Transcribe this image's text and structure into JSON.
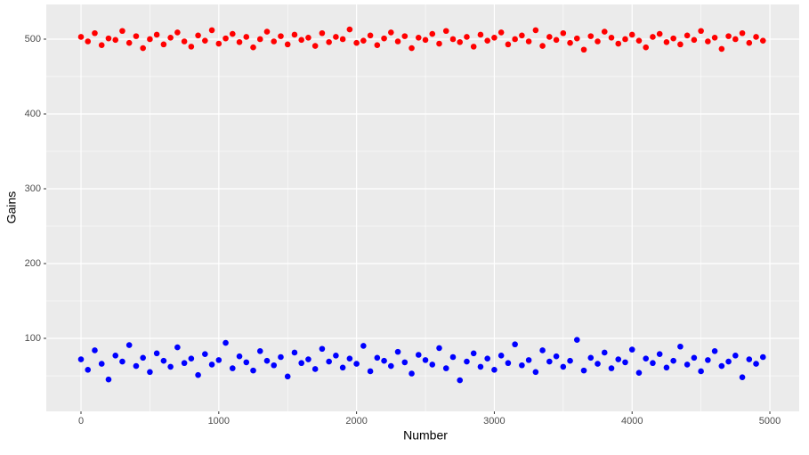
{
  "chart_data": {
    "type": "scatter",
    "x_label": "Number",
    "y_label": "Gains",
    "xlim": [
      -252,
      5213
    ],
    "xticks": [
      0,
      1000,
      2000,
      3000,
      4000,
      5000
    ],
    "ylim": [
      2.4,
      546.4
    ],
    "yticks": [
      100,
      200,
      300,
      400,
      500
    ],
    "grid": true,
    "minor_grid": true,
    "x": [
      0,
      50,
      100,
      150,
      200,
      250,
      300,
      350,
      400,
      450,
      500,
      550,
      600,
      650,
      700,
      750,
      800,
      850,
      900,
      950,
      1000,
      1050,
      1100,
      1150,
      1200,
      1250,
      1300,
      1350,
      1400,
      1450,
      1500,
      1550,
      1600,
      1650,
      1700,
      1750,
      1800,
      1850,
      1900,
      1950,
      2000,
      2050,
      2100,
      2150,
      2200,
      2250,
      2300,
      2350,
      2400,
      2450,
      2500,
      2550,
      2600,
      2650,
      2700,
      2750,
      2800,
      2850,
      2900,
      2950,
      3000,
      3050,
      3100,
      3150,
      3200,
      3250,
      3300,
      3350,
      3400,
      3450,
      3500,
      3550,
      3600,
      3650,
      3700,
      3750,
      3800,
      3850,
      3900,
      3950,
      4000,
      4050,
      4100,
      4150,
      4200,
      4250,
      4300,
      4350,
      4400,
      4450,
      4500,
      4550,
      4600,
      4650,
      4700,
      4750,
      4800,
      4850,
      4900,
      4950
    ],
    "series": [
      {
        "color": "#ff0000",
        "values": [
          503,
          497,
          508,
          492,
          501,
          499,
          511,
          495,
          504,
          488,
          500,
          506,
          493,
          502,
          509,
          497,
          490,
          505,
          498,
          512,
          494,
          501,
          507,
          496,
          503,
          489,
          500,
          510,
          497,
          504,
          493,
          506,
          499,
          502,
          491,
          508,
          496,
          503,
          500,
          513,
          495,
          498,
          505,
          492,
          501,
          509,
          497,
          504,
          488,
          502,
          499,
          507,
          494,
          511,
          500,
          496,
          503,
          490,
          506,
          498,
          502,
          509,
          493,
          500,
          505,
          497,
          512,
          491,
          503,
          499,
          508,
          495,
          501,
          486,
          504,
          497,
          510,
          502,
          494,
          500,
          506,
          498,
          489,
          503,
          507,
          496,
          501,
          493,
          505,
          499,
          511,
          497,
          502,
          487,
          504,
          500,
          508,
          495,
          503,
          498
        ]
      },
      {
        "color": "#0000ff",
        "values": [
          72,
          58,
          84,
          66,
          45,
          77,
          69,
          91,
          63,
          74,
          55,
          80,
          70,
          62,
          88,
          67,
          73,
          51,
          79,
          65,
          71,
          94,
          60,
          76,
          68,
          57,
          83,
          70,
          64,
          75,
          49,
          81,
          67,
          72,
          59,
          86,
          69,
          77,
          61,
          73,
          66,
          90,
          56,
          74,
          70,
          63,
          82,
          68,
          53,
          78,
          71,
          65,
          87,
          60,
          75,
          44,
          69,
          80,
          62,
          73,
          58,
          77,
          67,
          92,
          64,
          71,
          55,
          84,
          69,
          76,
          62,
          70,
          98,
          57,
          74,
          66,
          81,
          60,
          72,
          68,
          85,
          54,
          73,
          67,
          79,
          61,
          70,
          89,
          65,
          74,
          56,
          71,
          83,
          63,
          69,
          77,
          48,
          72,
          66,
          75
        ]
      }
    ]
  }
}
